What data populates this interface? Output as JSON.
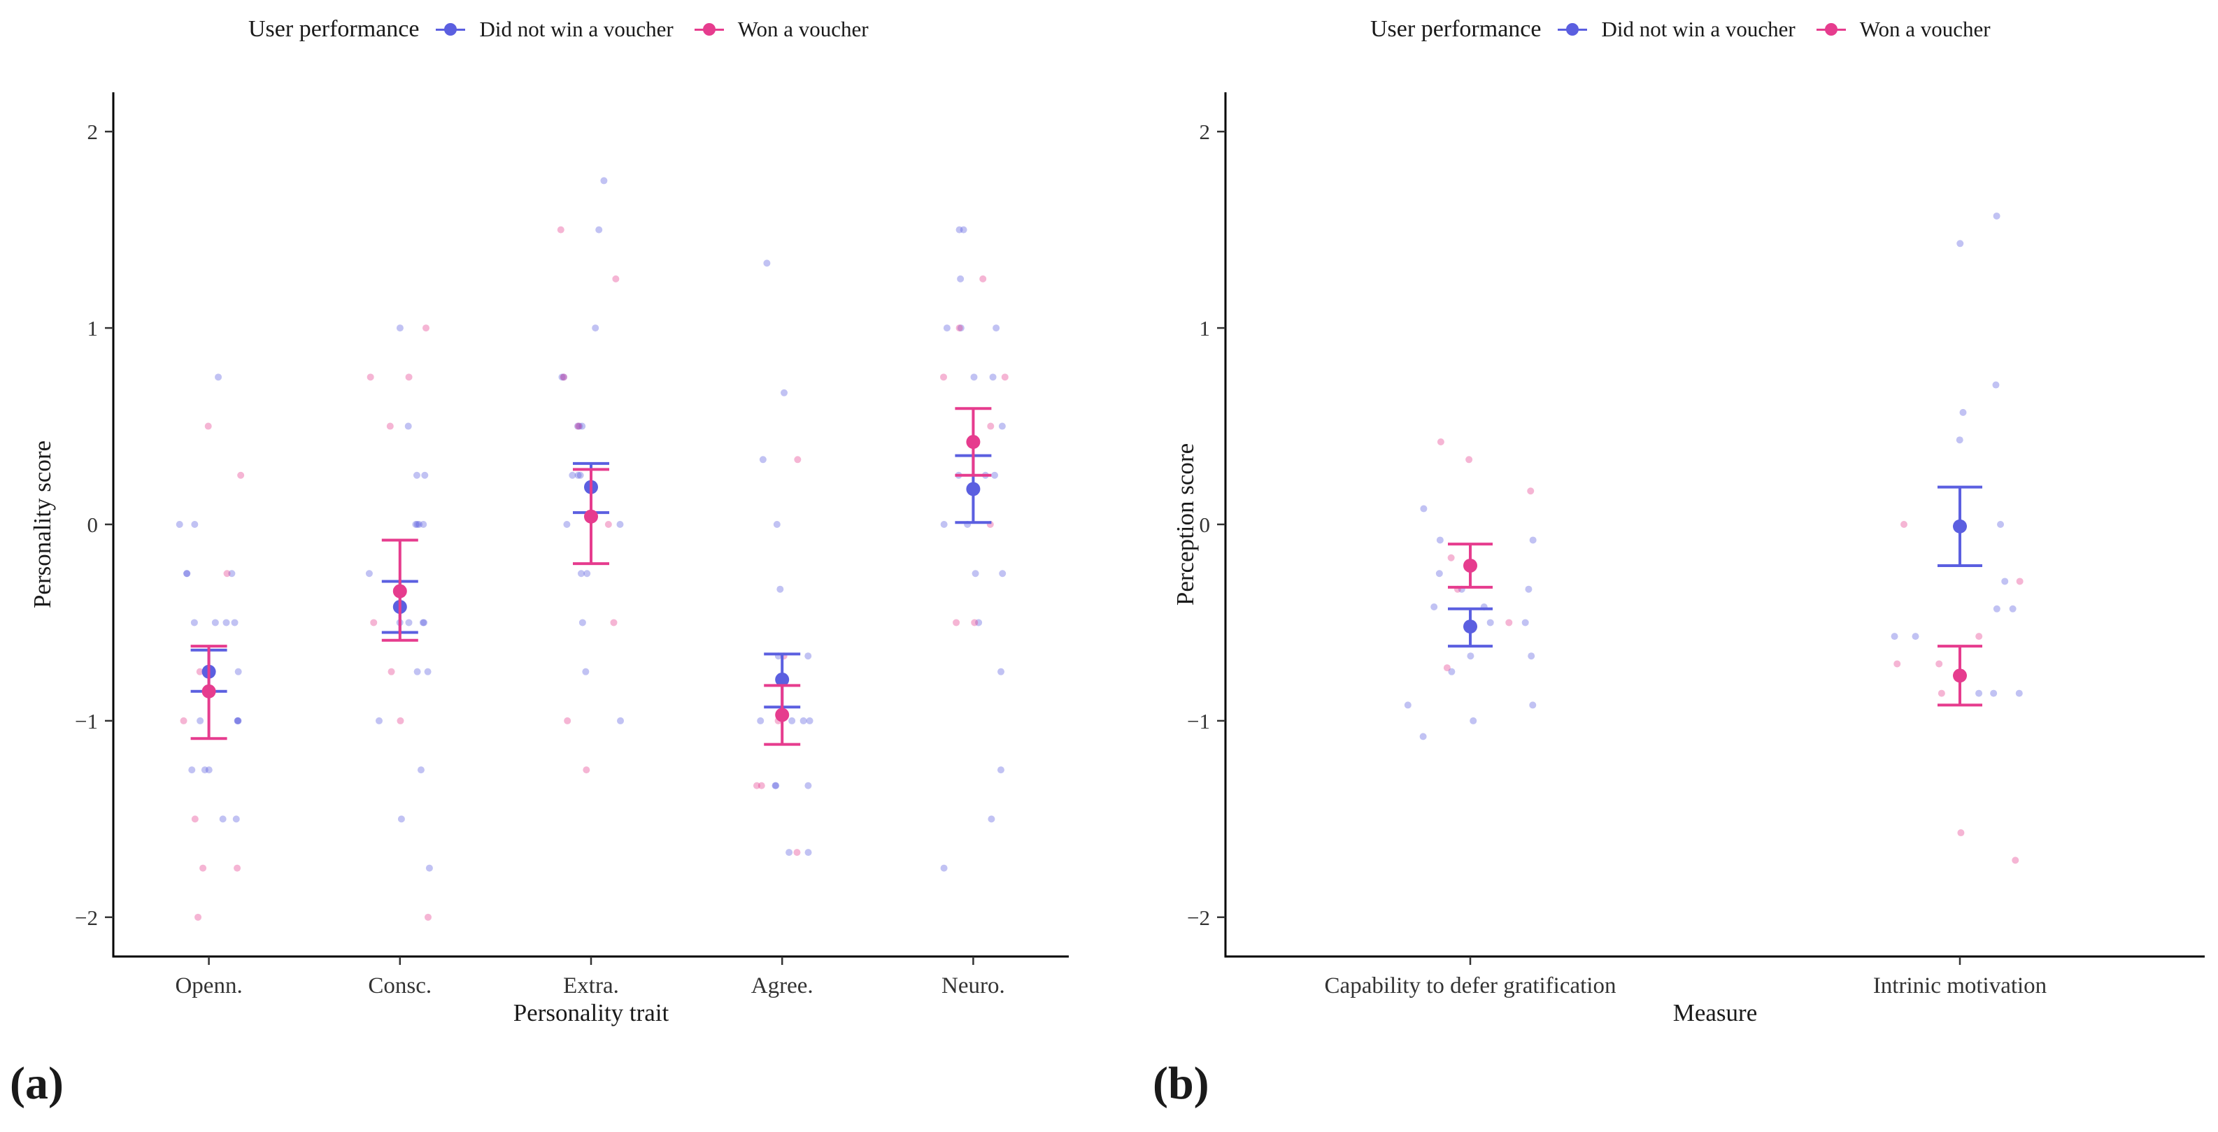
{
  "legend": {
    "title": "User performance",
    "items": [
      {
        "label": "Did not win a voucher",
        "color": "#5b5fe0"
      },
      {
        "label": "Won a voucher",
        "color": "#e63c8e"
      }
    ]
  },
  "panel_labels": {
    "a": "(a)",
    "b": "(b)"
  },
  "chart_data": [
    {
      "type": "scatter",
      "title": "",
      "xlabel": "Personality trait",
      "ylabel": "Personality score",
      "ylim": [
        -2.2,
        2.2
      ],
      "yticks": [
        2,
        1,
        0,
        -1,
        -2
      ],
      "ytick_labels": [
        "2",
        "1",
        "0",
        "−1",
        "−2"
      ],
      "categories": [
        "Openn.",
        "Consc.",
        "Extra.",
        "Agree.",
        "Neuro."
      ],
      "grid": false,
      "legend_position": "top",
      "series": [
        {
          "name": "Did not win a voucher",
          "color": "#5b5fe0",
          "means": [
            -0.75,
            -0.42,
            0.19,
            -0.79,
            0.18
          ],
          "error_low": [
            -0.85,
            -0.55,
            0.06,
            -0.93,
            0.01
          ],
          "error_high": [
            -0.64,
            -0.29,
            0.31,
            -0.66,
            0.35
          ],
          "points": [
            [
              -1.25,
              -1.25,
              -1.0,
              -1.0,
              -0.75,
              -0.5,
              -0.5,
              -0.25,
              0.0,
              -0.5,
              -1.5,
              -1.0,
              -0.75,
              -1.25,
              -0.25,
              0.0,
              0.75,
              -0.5,
              -1.5,
              -1.0,
              -0.25
            ],
            [
              -0.5,
              -0.25,
              0.0,
              0.25,
              -0.75,
              -1.25,
              -0.5,
              0.0,
              1.0,
              0.25,
              -0.75,
              -1.5,
              -1.0,
              0.0,
              0.5,
              -0.5,
              -1.75,
              0.0,
              -0.5
            ],
            [
              0.0,
              0.25,
              0.5,
              0.75,
              -0.25,
              0.75,
              1.75,
              0.5,
              1.0,
              0.25,
              0.0,
              -0.25,
              -0.5,
              -0.75,
              0.5,
              1.5,
              -1.0,
              0.25
            ],
            [
              -1.0,
              -1.33,
              -1.67,
              -0.33,
              0.0,
              -0.67,
              -1.0,
              1.33,
              -1.33,
              0.67,
              -1.0,
              -0.67,
              -1.33,
              -1.67,
              0.33,
              -1.0
            ],
            [
              0.25,
              0.0,
              -0.25,
              1.5,
              0.75,
              0.5,
              1.25,
              1.0,
              -0.5,
              -1.5,
              0.25,
              1.5,
              -0.75,
              1.0,
              0.75,
              -1.25,
              -1.75,
              0.25,
              0.0,
              1.0,
              -0.25
            ]
          ]
        },
        {
          "name": "Won a voucher",
          "color": "#e63c8e",
          "means": [
            -0.85,
            -0.34,
            0.04,
            -0.97,
            0.42
          ],
          "error_low": [
            -1.09,
            -0.59,
            -0.2,
            -1.12,
            0.25
          ],
          "error_high": [
            -0.62,
            -0.08,
            0.28,
            -0.82,
            0.59
          ],
          "points": [
            [
              0.5,
              -2.0,
              -0.75,
              -1.5,
              -1.75,
              -0.25,
              -1.75,
              0.25,
              -1.0
            ],
            [
              1.0,
              0.5,
              -0.75,
              -0.5,
              0.75,
              -2.0,
              -1.0,
              0.75
            ],
            [
              -0.5,
              -1.25,
              0.75,
              1.5,
              1.25,
              -1.0,
              0.0,
              0.5
            ],
            [
              -1.33,
              -1.0,
              -0.67,
              0.33,
              -1.67,
              -1.33
            ],
            [
              1.0,
              0.75,
              -0.5,
              0.5,
              1.25,
              0.0,
              0.75,
              -0.5
            ]
          ]
        }
      ]
    },
    {
      "type": "scatter",
      "title": "",
      "xlabel": "Measure",
      "ylabel": "Perception score",
      "ylim": [
        -2.2,
        2.2
      ],
      "yticks": [
        2,
        1,
        0,
        -1,
        -2
      ],
      "ytick_labels": [
        "2",
        "1",
        "0",
        "−1",
        "−2"
      ],
      "categories": [
        "Capability to defer gratification",
        "Intrinic motivation"
      ],
      "grid": false,
      "legend_position": "top",
      "series": [
        {
          "name": "Did not win a voucher",
          "color": "#5b5fe0",
          "means": [
            -0.52,
            -0.01
          ],
          "error_low": [
            -0.62,
            -0.21
          ],
          "error_high": [
            -0.43,
            0.19
          ],
          "points": [
            [
              -0.33,
              -0.42,
              -0.75,
              -0.67,
              -0.08,
              -0.25,
              -0.42,
              -1.08,
              -0.92,
              -0.5,
              -0.33,
              -0.92,
              -1.0,
              -0.67,
              0.08,
              -0.08,
              -0.5
            ],
            [
              -0.86,
              -0.57,
              0.0,
              0.71,
              -0.86,
              -0.29,
              0.43,
              1.57,
              1.43,
              -0.43,
              -0.43,
              0.57,
              -0.57,
              -0.86
            ]
          ]
        },
        {
          "name": "Won a voucher",
          "color": "#e63c8e",
          "means": [
            -0.21,
            -0.77
          ],
          "error_low": [
            -0.32,
            -0.92
          ],
          "error_high": [
            -0.1,
            -0.62
          ],
          "points": [
            [
              0.33,
              -0.73,
              -0.17,
              0.42,
              -0.33,
              -0.5,
              0.17
            ],
            [
              -1.71,
              -0.71,
              -0.86,
              0.0,
              -0.71,
              -0.29,
              -1.57,
              -0.57
            ]
          ]
        }
      ]
    }
  ]
}
